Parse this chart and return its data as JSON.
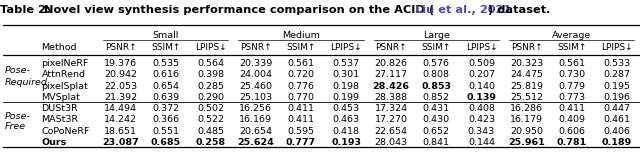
{
  "col_groups": [
    "Small",
    "Medium",
    "Large",
    "Average"
  ],
  "col_metrics": [
    "PSNR↑",
    "SSIM↑",
    "LPIPS↓"
  ],
  "methods": [
    "pixelNeRF",
    "AttnRend",
    "pixelSplat",
    "MVSplat",
    "DUSt3R",
    "MASt3R",
    "CoPoNeRF",
    "Ours"
  ],
  "data": [
    [
      "19.376",
      "0.535",
      "0.564",
      "20.339",
      "0.561",
      "0.537",
      "20.826",
      "0.576",
      "0.509",
      "20.323",
      "0.561",
      "0.533"
    ],
    [
      "20.942",
      "0.616",
      "0.398",
      "24.004",
      "0.720",
      "0.301",
      "27.117",
      "0.808",
      "0.207",
      "24.475",
      "0.730",
      "0.287"
    ],
    [
      "22.053",
      "0.654",
      "0.285",
      "25.460",
      "0.776",
      "0.198",
      "28.426",
      "0.853",
      "0.140",
      "25.819",
      "0.779",
      "0.195"
    ],
    [
      "21.392",
      "0.639",
      "0.290",
      "25.103",
      "0.770",
      "0.199",
      "28.388",
      "0.852",
      "0.139",
      "25.512",
      "0.773",
      "0.196"
    ],
    [
      "14.494",
      "0.372",
      "0.502",
      "16.256",
      "0.411",
      "0.453",
      "17.324",
      "0.431",
      "0.408",
      "16.286",
      "0.411",
      "0.447"
    ],
    [
      "14.242",
      "0.366",
      "0.522",
      "16.169",
      "0.411",
      "0.463",
      "17.270",
      "0.430",
      "0.423",
      "16.179",
      "0.409",
      "0.461"
    ],
    [
      "18.651",
      "0.551",
      "0.485",
      "20.654",
      "0.595",
      "0.418",
      "22.654",
      "0.652",
      "0.343",
      "20.950",
      "0.606",
      "0.406"
    ],
    [
      "23.087",
      "0.685",
      "0.258",
      "25.624",
      "0.777",
      "0.193",
      "28.043",
      "0.841",
      "0.144",
      "25.961",
      "0.781",
      "0.189"
    ]
  ],
  "bold": [
    [
      false,
      false,
      false,
      false,
      false,
      false,
      false,
      false,
      false,
      false,
      false,
      false
    ],
    [
      false,
      false,
      false,
      false,
      false,
      false,
      false,
      false,
      false,
      false,
      false,
      false
    ],
    [
      false,
      false,
      false,
      false,
      false,
      false,
      true,
      true,
      false,
      false,
      false,
      false
    ],
    [
      false,
      false,
      false,
      false,
      false,
      false,
      false,
      false,
      true,
      false,
      false,
      false
    ],
    [
      false,
      false,
      false,
      false,
      false,
      false,
      false,
      false,
      false,
      false,
      false,
      false
    ],
    [
      false,
      false,
      false,
      false,
      false,
      false,
      false,
      false,
      false,
      false,
      false,
      false
    ],
    [
      false,
      false,
      false,
      false,
      false,
      false,
      false,
      false,
      false,
      false,
      false,
      false
    ],
    [
      true,
      true,
      true,
      true,
      true,
      true,
      false,
      false,
      false,
      true,
      true,
      true
    ]
  ],
  "background_color": "#ffffff",
  "font_size": 6.8,
  "title_font_size": 8.2,
  "title_normal": "Table 2: ",
  "title_bold": "Novel view synthesis performance comparison on the ACID (",
  "title_link": "Liu et al., 2021",
  "title_end": ") dataset."
}
